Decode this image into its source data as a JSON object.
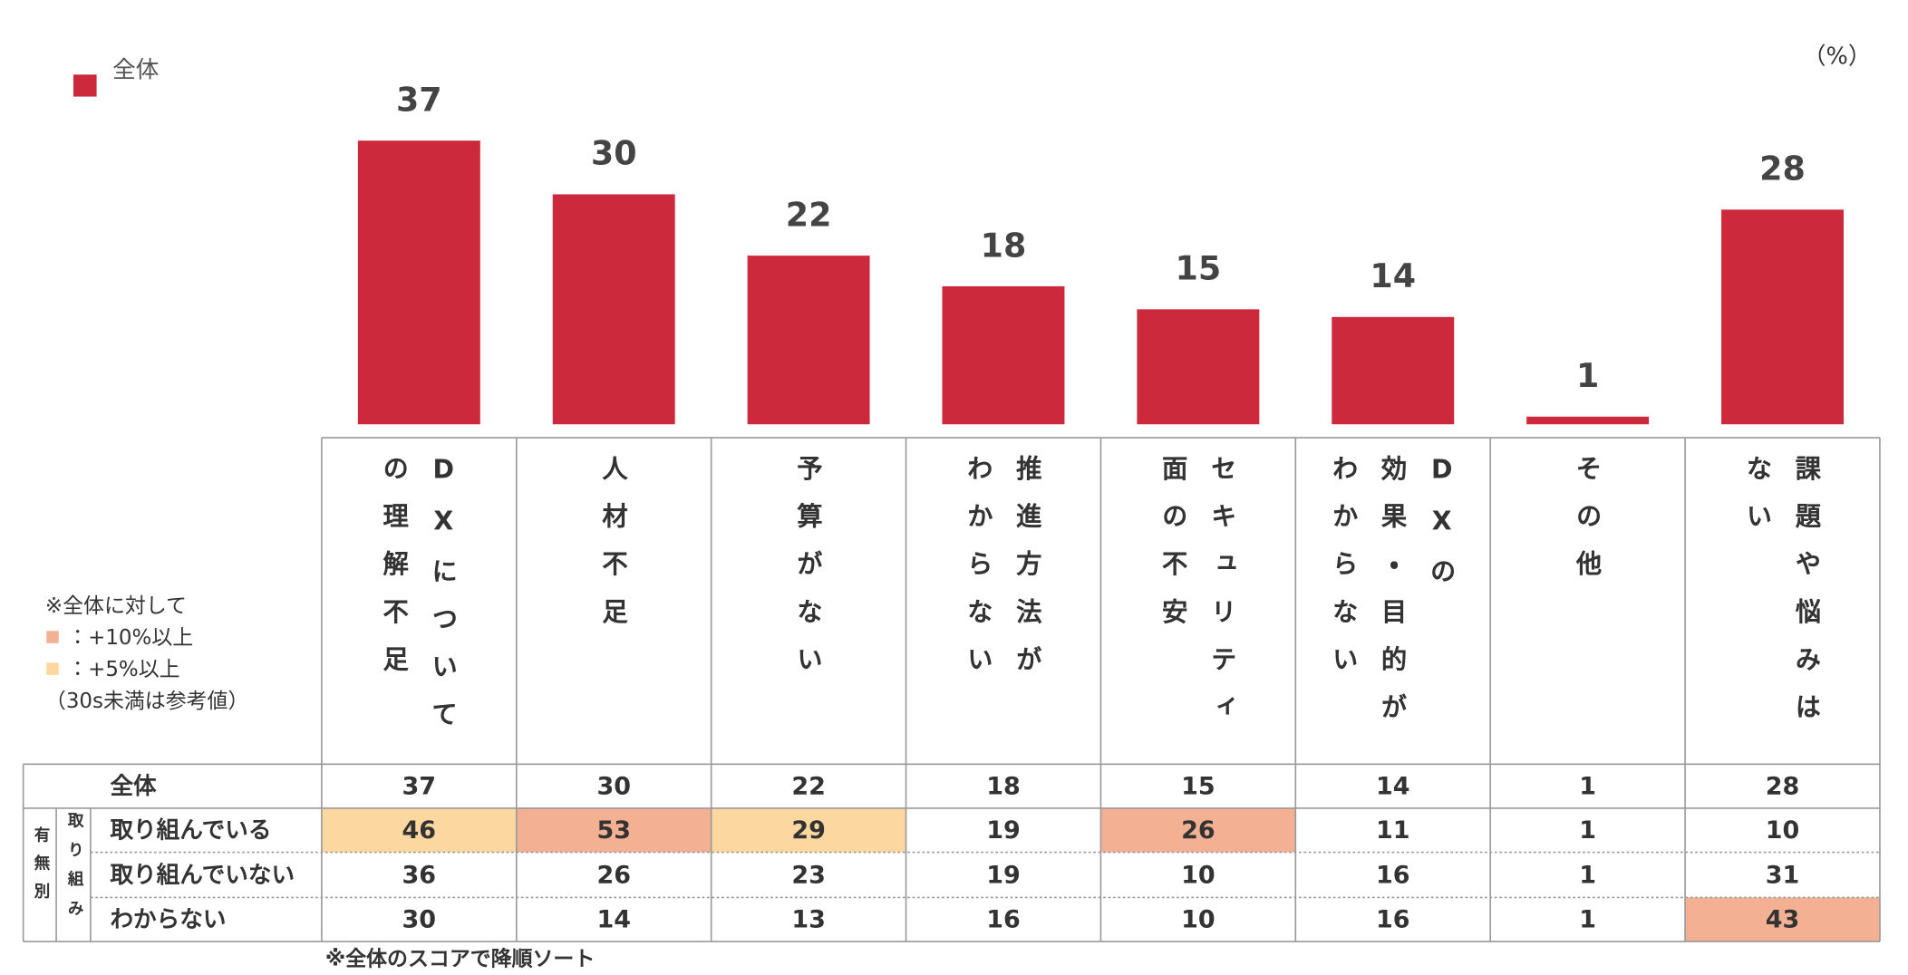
{
  "chart_data": {
    "type": "bar",
    "unit": "（%）",
    "categories": [
      "DXについて\nの理解不足",
      "人材不足",
      "予算がない",
      "推進方法が\nわからない",
      "セキュリティ\n面の不安",
      "DXの\n効果・目的が\nわからない",
      "その他",
      "課題や悩みは\nない"
    ],
    "series": [
      {
        "name": "全体",
        "color": "#cc2a3c",
        "values": [
          37,
          30,
          22,
          18,
          15,
          14,
          1,
          28
        ]
      }
    ]
  },
  "table": {
    "group_label": "有無別",
    "subgroup_label": "取り組み",
    "rows": [
      {
        "label": "全体",
        "values": [
          37,
          30,
          22,
          18,
          15,
          14,
          1,
          28
        ]
      },
      {
        "label": "取り組んでいる",
        "values": [
          46,
          53,
          29,
          19,
          26,
          11,
          1,
          10
        ]
      },
      {
        "label": "取り組んでいない",
        "values": [
          36,
          26,
          23,
          19,
          10,
          16,
          1,
          31
        ]
      },
      {
        "label": "わからない",
        "values": [
          30,
          14,
          13,
          16,
          10,
          16,
          1,
          43
        ]
      }
    ]
  },
  "notes": {
    "title": "※全体に対して",
    "levels": [
      {
        "label": "：+10%以上",
        "min": 10,
        "color": "#f4b092"
      },
      {
        "label": "：+5%以上",
        "min": 5,
        "color": "#fcd8a0"
      }
    ],
    "caveat": "（30s未満は参考値）"
  },
  "footer": "※全体のスコアで降順ソート"
}
